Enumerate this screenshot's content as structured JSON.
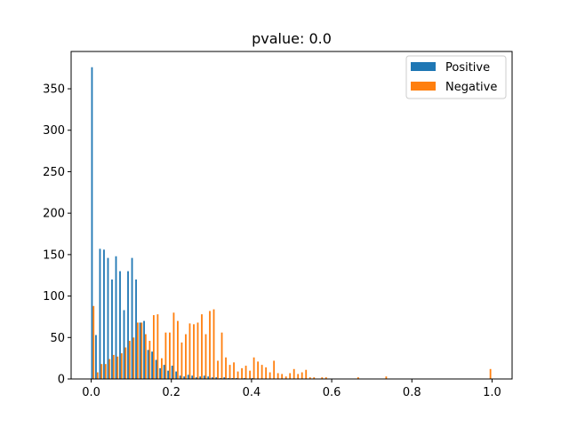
{
  "chart_data": {
    "type": "bar",
    "title": "pvalue: 0.0",
    "xlabel": "",
    "ylabel": "",
    "xlim": [
      -0.05,
      1.05
    ],
    "ylim": [
      0,
      395
    ],
    "xticks": [
      0.0,
      0.2,
      0.4,
      0.6,
      0.8,
      1.0
    ],
    "xtick_labels": [
      "0.0",
      "0.2",
      "0.4",
      "0.6",
      "0.8",
      "1.0"
    ],
    "yticks": [
      0,
      50,
      100,
      150,
      200,
      250,
      300,
      350
    ],
    "ytick_labels": [
      "0",
      "50",
      "100",
      "150",
      "200",
      "250",
      "300",
      "350"
    ],
    "grid": false,
    "legend_position": "top-right",
    "series": [
      {
        "name": "Positive",
        "color": "#1f77b4",
        "x": [
          0.0,
          0.01,
          0.02,
          0.03,
          0.04,
          0.05,
          0.06,
          0.07,
          0.08,
          0.09,
          0.1,
          0.11,
          0.12,
          0.13,
          0.14,
          0.15,
          0.16,
          0.17,
          0.18,
          0.19,
          0.2,
          0.21,
          0.22,
          0.23,
          0.24,
          0.25,
          0.26,
          0.27,
          0.28,
          0.29,
          0.3,
          0.31,
          0.32,
          0.33,
          0.34,
          0.35,
          0.36,
          0.37,
          0.38,
          0.39,
          0.4,
          0.41,
          0.42,
          0.43,
          0.44,
          0.45,
          0.46,
          0.47,
          0.48,
          0.49,
          0.5,
          0.51,
          0.52,
          0.53,
          0.54,
          0.55,
          0.56,
          0.57,
          0.58,
          0.59,
          0.6,
          0.61,
          0.62,
          0.63,
          0.64,
          0.65,
          0.66,
          0.67,
          0.68,
          0.69,
          0.7,
          0.71,
          0.72,
          0.73,
          0.74,
          0.75,
          0.76,
          0.77,
          0.78,
          0.79,
          0.8,
          0.81,
          0.82,
          0.83,
          0.84,
          0.85,
          0.86,
          0.87,
          0.88,
          0.89,
          0.9,
          0.91,
          0.92,
          0.93,
          0.94,
          0.95,
          0.96,
          0.97,
          0.98,
          0.99
        ],
        "values": [
          376,
          53,
          157,
          156,
          146,
          120,
          148,
          130,
          83,
          130,
          146,
          120,
          68,
          70,
          35,
          33,
          23,
          13,
          17,
          10,
          16,
          9,
          4,
          3,
          5,
          4,
          2,
          3,
          4,
          3,
          2,
          2,
          1,
          2,
          1,
          1,
          1,
          0,
          1,
          0,
          1,
          0,
          0,
          0,
          0,
          0,
          0,
          0,
          0,
          0,
          0,
          0,
          0,
          0,
          0,
          0,
          0,
          0,
          0,
          0,
          0,
          0,
          0,
          0,
          0,
          0,
          0,
          0,
          0,
          0,
          0,
          0,
          0,
          0,
          0,
          0,
          0,
          0,
          0,
          0,
          0,
          0,
          0,
          0,
          0,
          0,
          0,
          0,
          0,
          0,
          0,
          0,
          0,
          0,
          0,
          0,
          0,
          0,
          0,
          0
        ]
      },
      {
        "name": "Negative",
        "color": "#ff7f0e",
        "x": [
          0.0,
          0.01,
          0.02,
          0.03,
          0.04,
          0.05,
          0.06,
          0.07,
          0.08,
          0.09,
          0.1,
          0.11,
          0.12,
          0.13,
          0.14,
          0.15,
          0.16,
          0.17,
          0.18,
          0.19,
          0.2,
          0.21,
          0.22,
          0.23,
          0.24,
          0.25,
          0.26,
          0.27,
          0.28,
          0.29,
          0.3,
          0.31,
          0.32,
          0.33,
          0.34,
          0.35,
          0.36,
          0.37,
          0.38,
          0.39,
          0.4,
          0.41,
          0.42,
          0.43,
          0.44,
          0.45,
          0.46,
          0.47,
          0.48,
          0.49,
          0.5,
          0.51,
          0.52,
          0.53,
          0.54,
          0.55,
          0.56,
          0.57,
          0.58,
          0.59,
          0.6,
          0.61,
          0.62,
          0.63,
          0.64,
          0.65,
          0.66,
          0.67,
          0.68,
          0.69,
          0.7,
          0.71,
          0.72,
          0.73,
          0.74,
          0.75,
          0.76,
          0.77,
          0.78,
          0.79,
          0.8,
          0.81,
          0.82,
          0.83,
          0.84,
          0.85,
          0.86,
          0.87,
          0.88,
          0.89,
          0.9,
          0.91,
          0.92,
          0.93,
          0.94,
          0.95,
          0.96,
          0.97,
          0.98,
          0.99
        ],
        "values": [
          88,
          8,
          18,
          18,
          24,
          29,
          27,
          31,
          38,
          46,
          50,
          68,
          68,
          54,
          46,
          77,
          78,
          25,
          56,
          56,
          80,
          70,
          44,
          54,
          67,
          66,
          68,
          78,
          54,
          82,
          84,
          22,
          56,
          26,
          17,
          20,
          9,
          13,
          16,
          10,
          26,
          21,
          17,
          14,
          8,
          22,
          7,
          6,
          3,
          7,
          12,
          6,
          8,
          11,
          2,
          2,
          0,
          2,
          2,
          0,
          0,
          0,
          0,
          0,
          0,
          0,
          2,
          0,
          0,
          0,
          0,
          0,
          0,
          3,
          0,
          0,
          0,
          0,
          0,
          0,
          0,
          0,
          0,
          0,
          0,
          0,
          0,
          0,
          0,
          0,
          0,
          0,
          0,
          0,
          0,
          0,
          0,
          0,
          0,
          12
        ]
      }
    ]
  }
}
